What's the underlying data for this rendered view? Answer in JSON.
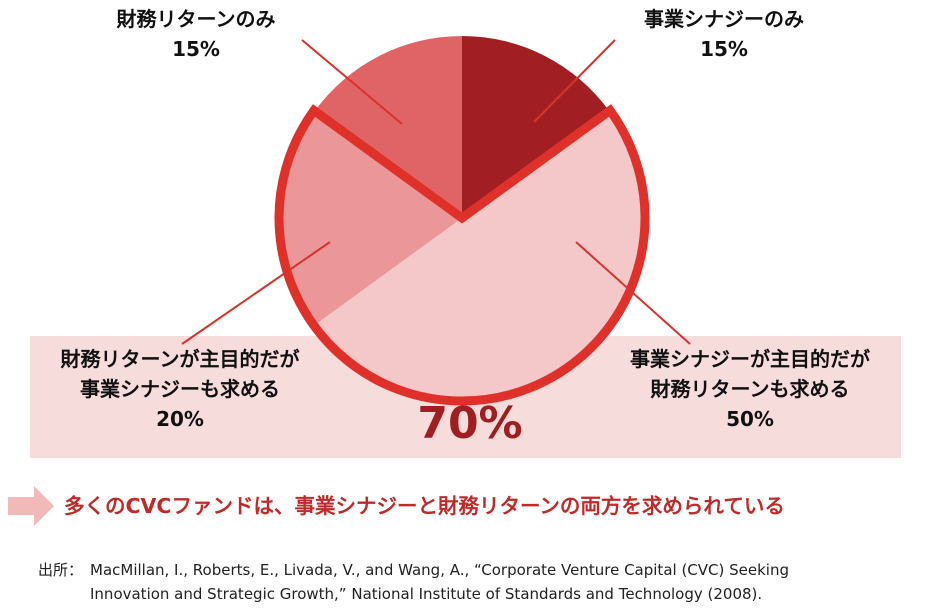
{
  "chart_data": {
    "type": "pie",
    "slices": [
      {
        "label": "事業シナジーのみ",
        "value": 15,
        "value_label": "15%",
        "color": "#a11f23"
      },
      {
        "label_lines": [
          "事業シナジーが主目的だが",
          "財務リターンも求める"
        ],
        "value": 50,
        "value_label": "50%",
        "color": "#f4c7c8"
      },
      {
        "label_lines": [
          "財務リターンが主目的だが",
          "事業シナジーも求める"
        ],
        "value": 20,
        "value_label": "20%",
        "color": "#eb9698"
      },
      {
        "label": "財務リターンのみ",
        "value": 15,
        "value_label": "15%",
        "color": "#e06465"
      }
    ],
    "highlight": {
      "label": "70%",
      "value": 70,
      "color": "#e0302a"
    }
  },
  "conclusion": "多くのCVCファンドは、事業シナジーと財務リターンの両方を求められている",
  "source": {
    "key": "出所：",
    "line1": "MacMillan, I., Roberts, E., Livada, V., and Wang, A., “Corporate Venture Capital (CVC) Seeking",
    "line2": "Innovation and Strategic Growth,” National Institute of Standards and Technology (2008)."
  },
  "colors": {
    "band": "#f7dcdc",
    "arrow": "#f2b9b9",
    "accent": "#c22a2a"
  }
}
